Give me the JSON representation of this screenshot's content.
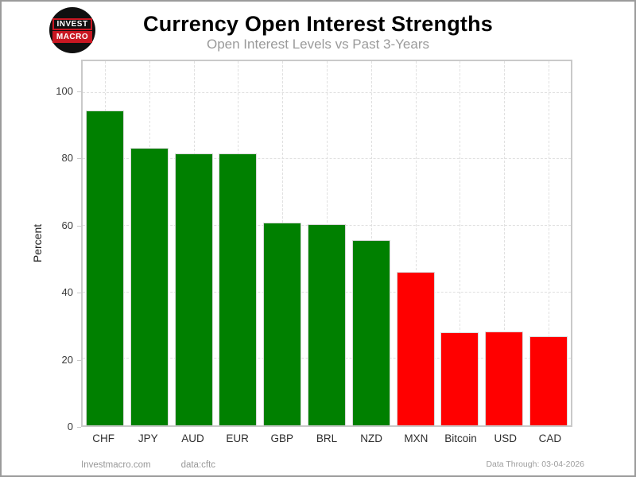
{
  "header": {
    "title": "Currency Open Interest Strengths",
    "subtitle": "Open Interest Levels vs Past 3-Years",
    "logo_line1": "INVEST",
    "logo_line2": "MACRO"
  },
  "chart_data": {
    "type": "bar",
    "categories": [
      "CHF",
      "JPY",
      "AUD",
      "EUR",
      "GBP",
      "BRL",
      "NZD",
      "MXN",
      "Bitcoin",
      "USD",
      "CAD"
    ],
    "values": [
      94.8,
      83.5,
      81.7,
      81.8,
      60.9,
      60.4,
      55.7,
      46.1,
      28.0,
      28.3,
      26.7
    ],
    "bar_colors": [
      "green",
      "green",
      "green",
      "green",
      "green",
      "green",
      "green",
      "red",
      "red",
      "red",
      "red"
    ],
    "color_map": {
      "green": "#008000",
      "red": "#ff0000"
    },
    "title": "Currency Open Interest Strengths",
    "subtitle": "Open Interest Levels vs Past 3-Years",
    "xlabel": "",
    "ylabel": "Percent",
    "yticks": [
      0,
      20,
      40,
      60,
      80,
      100
    ],
    "ylim": [
      0,
      109.5
    ],
    "grid": "dashed horizontal and vertical gridlines",
    "legend": "none"
  },
  "footer": {
    "left_site": "Investmacro.com",
    "left_source": "data:cftc",
    "right_note": "Data Through: 03-04-2026"
  }
}
